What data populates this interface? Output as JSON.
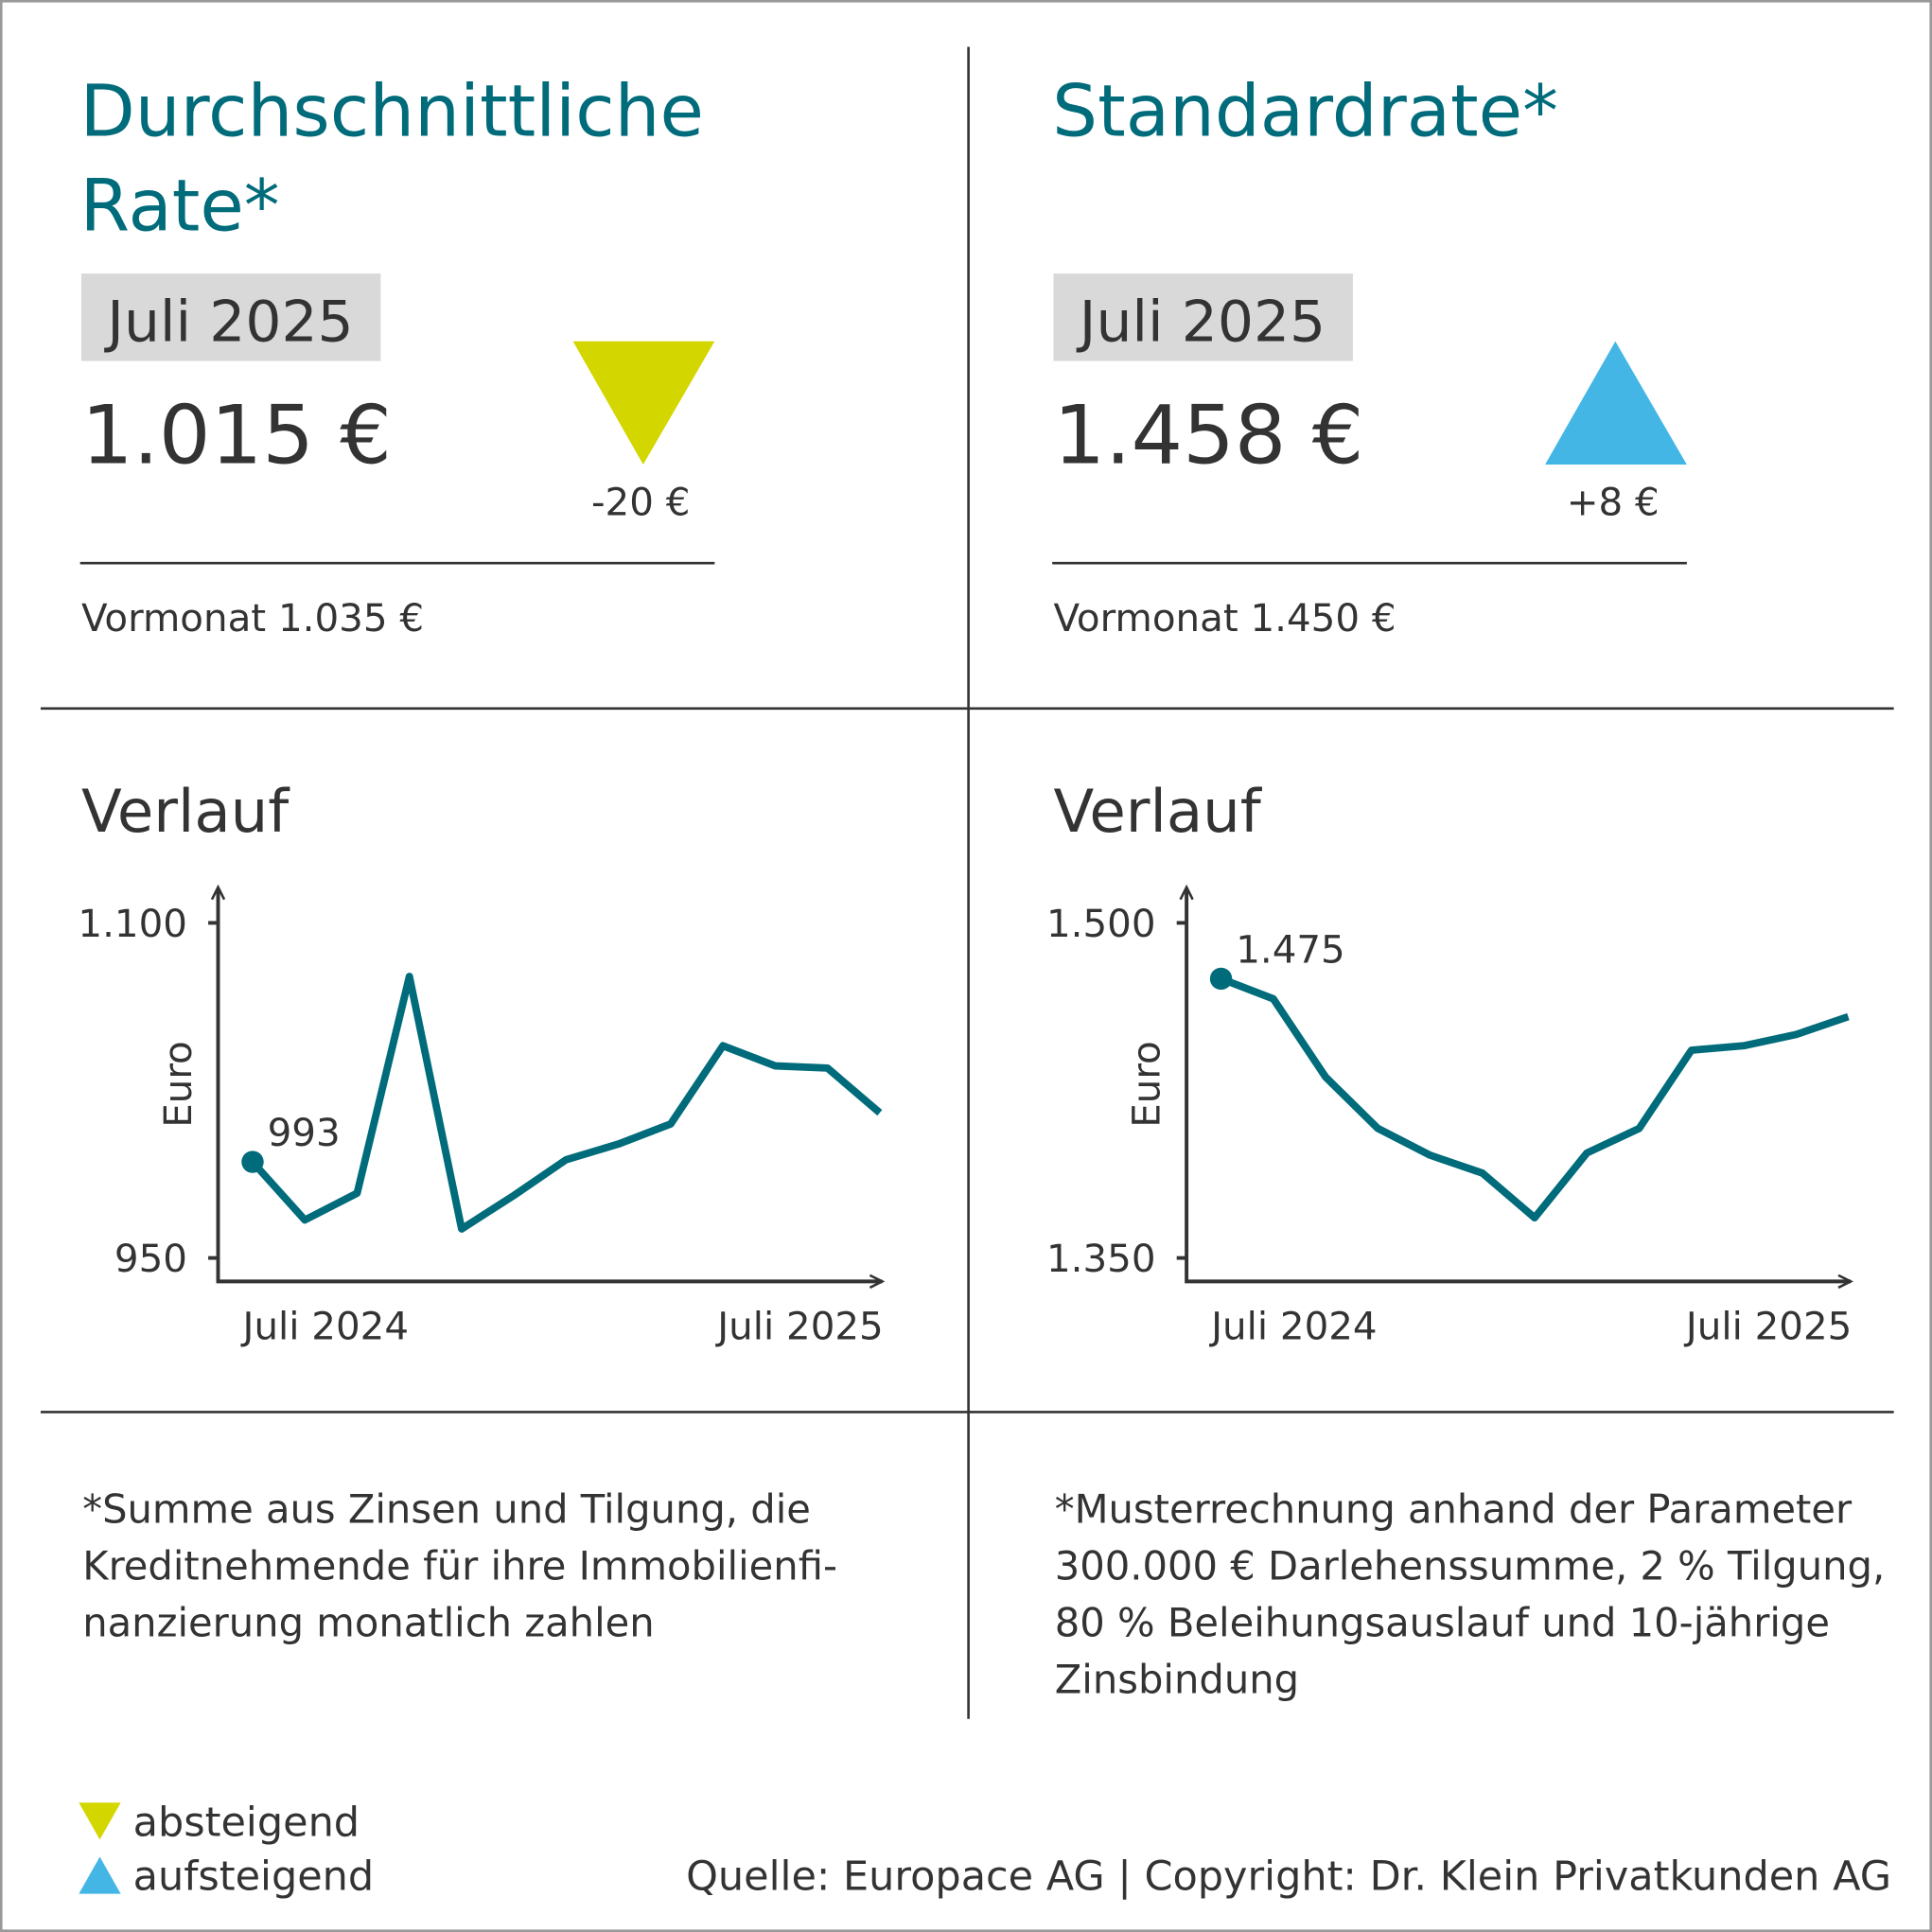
{
  "panels": [
    {
      "title": [
        "Durchschnittliche",
        "Rate*"
      ],
      "period": "Juli 2025",
      "value": "1.015 €",
      "change": "-20 €",
      "previous": "Vormonat 1.035 €",
      "section": "Verlauf",
      "footnote": [
        "*Summe aus Zinsen und Tilgung, die",
        "Kreditnehmende für ihre Immobilienfi-",
        "nanzierung monatlich zahlen"
      ]
    },
    {
      "title": [
        "Standardrate*"
      ],
      "period": "Juli 2025",
      "value": "1.458 €",
      "change": "+8 €",
      "previous": "Vormonat 1.450 €",
      "section": "Verlauf",
      "footnote": [
        "*Musterrechnung anhand der Parameter",
        "300.000 € Darlehenssumme, 2 % Tilgung,",
        "80 % Beleihungsauslauf und 10-jährige",
        "Zinsbindung"
      ]
    }
  ],
  "chart_data": [
    {
      "type": "line",
      "y_label": "Euro",
      "color": "#006b7a",
      "categories": [
        "Juli 2024",
        null,
        null,
        null,
        null,
        null,
        null,
        null,
        null,
        null,
        null,
        null,
        "Juli 2025"
      ],
      "values": [
        993,
        967,
        979,
        1076,
        963,
        978,
        994,
        1001,
        1010,
        1045,
        1036,
        1035,
        1015
      ],
      "ylim": [
        939.5,
        1116
      ],
      "yticks": [
        950,
        {
          "value": 1100,
          "label": "1.100"
        }
      ]
    },
    {
      "type": "line",
      "y_label": "Euro",
      "color": "#006b7a",
      "categories": [
        "Juli 2024",
        null,
        null,
        null,
        null,
        null,
        null,
        null,
        null,
        null,
        null,
        null,
        "Juli 2025"
      ],
      "values": [
        1475,
        1466,
        1431,
        1408,
        1396,
        1388,
        1368,
        1397,
        1408,
        1443,
        1445,
        1450,
        1458
      ],
      "value_labels": [
        "1.475",
        null,
        null,
        null,
        null,
        null,
        null,
        null,
        null,
        null,
        null,
        null,
        null
      ],
      "ylim": [
        1339.5,
        1516
      ],
      "yticks": [
        {
          "value": 1350,
          "label": "1.350"
        },
        {
          "value": 1500,
          "label": "1.500"
        }
      ]
    }
  ],
  "legend": [
    "absteigend",
    "aufsteigend"
  ],
  "source": "Quelle: Europace AG | Copyright: Dr. Klein Privatkunden AG"
}
